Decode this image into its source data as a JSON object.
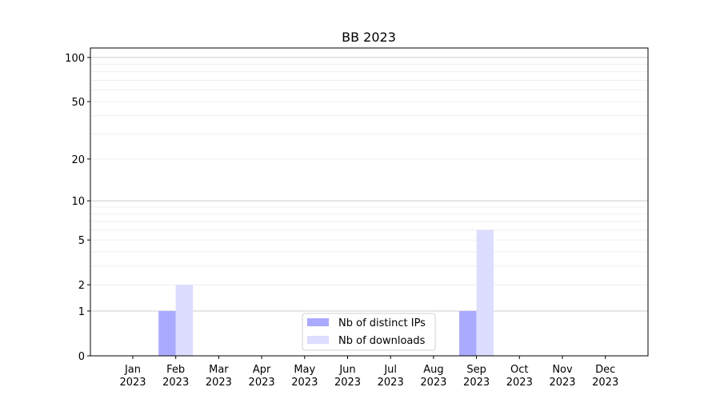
{
  "chart_data": {
    "type": "bar",
    "title": "BB 2023",
    "xlabel": "",
    "ylabel": "",
    "categories": [
      "Jan\n2023",
      "Feb\n2023",
      "Mar\n2023",
      "Apr\n2023",
      "May\n2023",
      "Jun\n2023",
      "Jul\n2023",
      "Aug\n2023",
      "Sep\n2023",
      "Oct\n2023",
      "Nov\n2023",
      "Dec\n2023"
    ],
    "series": [
      {
        "name": "Nb of distinct IPs",
        "color": "#aaaaff",
        "values": [
          0,
          1,
          0,
          0,
          0,
          0,
          0,
          0,
          1,
          0,
          0,
          0
        ]
      },
      {
        "name": "Nb of downloads",
        "color": "#ddddff",
        "values": [
          0,
          2,
          0,
          0,
          0,
          0,
          0,
          0,
          6,
          0,
          0,
          0
        ]
      }
    ],
    "yscale": "log(1+y)",
    "ylim": [
      0,
      116
    ],
    "yticks": [
      0,
      1,
      2,
      5,
      10,
      20,
      50,
      100
    ],
    "ytick_labels": [
      "0",
      "1",
      "2",
      "5",
      "10",
      "20",
      "50",
      "100"
    ],
    "grid": true,
    "legend": "bottom-center"
  }
}
